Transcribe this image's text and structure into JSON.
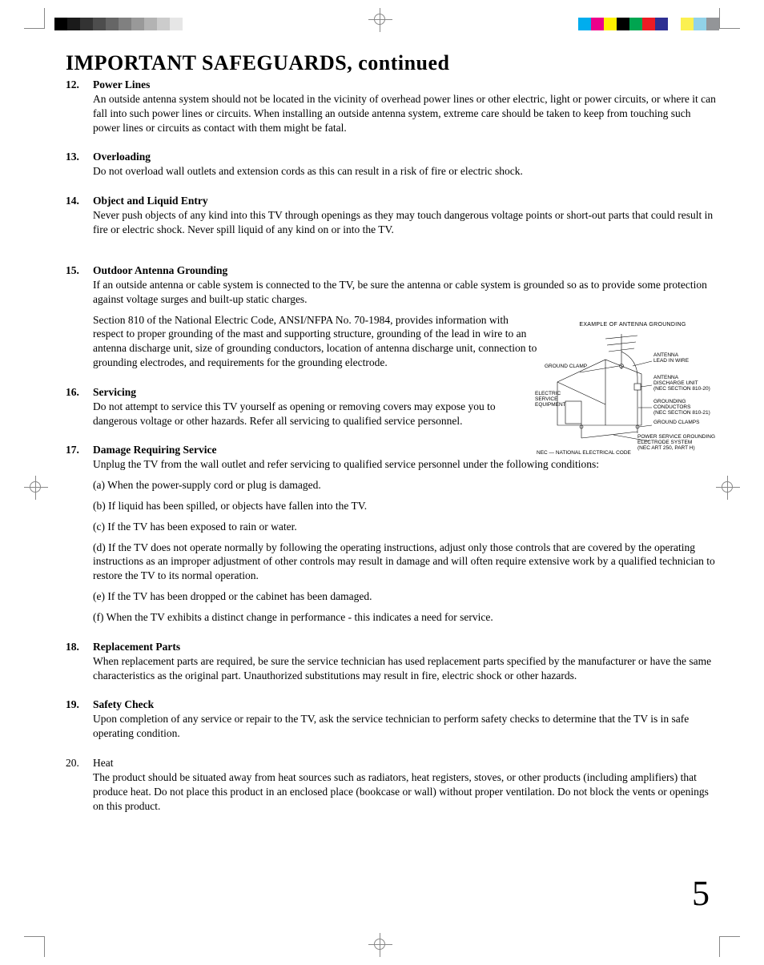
{
  "print_marks": {
    "grayscale_swatches": [
      "#000000",
      "#1a1a1a",
      "#333333",
      "#4d4d4d",
      "#666666",
      "#808080",
      "#999999",
      "#b3b3b3",
      "#cccccc",
      "#e6e6e6",
      "#ffffff",
      "#ffffff",
      "#ffffff"
    ],
    "color_swatches": [
      "#ffffff",
      "#00adee",
      "#ec008b",
      "#fff100",
      "#000000",
      "#00a550",
      "#ed1b24",
      "#2e3092",
      "#ffffff",
      "#fbf050",
      "#91d2e8",
      "#939598"
    ]
  },
  "page_number": "5",
  "title": "IMPORTANT SAFEGUARDS, continued",
  "items": [
    {
      "num": "12.",
      "heading": "Power Lines",
      "paras": [
        "An outside antenna system should not be located in the vicinity of overhead power lines or other electric, light or power circuits, or where it can fall into such power lines or circuits.  When installing an outside antenna system, extreme care should be taken to keep from touching such power lines or circuits as contact with them might be fatal."
      ]
    },
    {
      "num": "13.",
      "heading": "Overloading",
      "paras": [
        "Do not overload wall outlets and extension cords as this can result in a risk of fire or electric shock."
      ]
    },
    {
      "num": "14.",
      "heading": "Object and Liquid Entry",
      "paras": [
        "Never push objects of any kind into this TV through openings as they may touch dangerous voltage points or short-out parts that could result in fire or electric shock.  Never spill liquid of any kind on or into the TV."
      ],
      "gap_after": true
    },
    {
      "num": "15.",
      "heading": "Outdoor Antenna Grounding",
      "paras": [
        "If an outside antenna or cable system is connected to the TV, be sure the antenna or cable system is grounded so as to provide some protection against voltage surges and built-up static charges.",
        "Section 810 of the National Electric Code, ANSI/NFPA No. 70-1984, provides information with respect to proper grounding of the mast and supporting structure, grounding of the lead in wire to an antenna discharge unit, size of grounding conductors, location of antenna discharge unit, connection to grounding electrodes, and requirements for the grounding electrode."
      ],
      "wrap": [
        false,
        true
      ]
    },
    {
      "num": "16.",
      "heading": "Servicing",
      "paras": [
        "Do not attempt to service this TV yourself as opening or removing covers may expose you to dangerous voltage or other hazards.  Refer all servicing to qualified service personnel."
      ],
      "wrap": [
        true
      ]
    },
    {
      "num": "17.",
      "heading": "Damage Requiring Service",
      "paras": [
        "Unplug the TV from the wall outlet and refer servicing to qualified service personnel under the following conditions:"
      ],
      "subs": [
        "(a) When the power-supply cord or plug is damaged.",
        "(b) If liquid has been spilled, or objects have fallen into the TV.",
        "(c) If the TV has been exposed to rain or water.",
        "(d) If the TV does not operate normally by following the operating instructions, adjust only those controls that are covered by the operating instructions as an improper adjustment of other controls may result in damage and will often require extensive work by a qualified technician to restore the TV to its normal operation.",
        "(e) If the TV has been dropped or the cabinet has been damaged.",
        "(f) When the TV exhibits a distinct change in performance - this indicates a need for service."
      ]
    },
    {
      "num": "18.",
      "heading": "Replacement Parts",
      "paras": [
        "When replacement parts are required, be sure the service technician has used replacement parts specified by the manufacturer or have the same characteristics as the original part.  Unauthorized substitutions may result in fire, electric shock or other hazards."
      ]
    },
    {
      "num": "19.",
      "heading": "Safety Check",
      "paras": [
        "Upon completion of any service or repair to the TV, ask the service technician to perform safety checks to determine that the TV is in safe operating condition."
      ]
    },
    {
      "num": "20.",
      "heading": "Heat",
      "plain": true,
      "paras": [
        "The product should be situated away from heat sources such as radiators, heat registers, stoves, or other products (including amplifiers) that produce heat.  Do not place this product in an enclosed place (bookcase or wall) without proper ventilation.  Do not block the vents or openings on this product."
      ]
    }
  ],
  "diagram": {
    "title": "EXAMPLE OF ANTENNA GROUNDING",
    "labels": {
      "ground_clamp": "GROUND CLAMP",
      "electric_service": "ELECTRIC\nSERVICE\nEQUIPMENT",
      "antenna_lead": "ANTENNA\nLEAD IN WIRE",
      "antenna_discharge": "ANTENNA\nDISCHARGE UNIT\n(NEC SECTION 810-20)",
      "grounding_conductors": "GROUNDING\nCONDUCTORS\n(NEC SECTION 810-21)",
      "ground_clamps2": "GROUND CLAMPS",
      "power_service": "POWER SERVICE GROUNDING\nELECTRODE SYSTEM\n(NEC ART 250, PART H)",
      "nec": "NEC — NATIONAL ELECTRICAL CODE"
    }
  }
}
